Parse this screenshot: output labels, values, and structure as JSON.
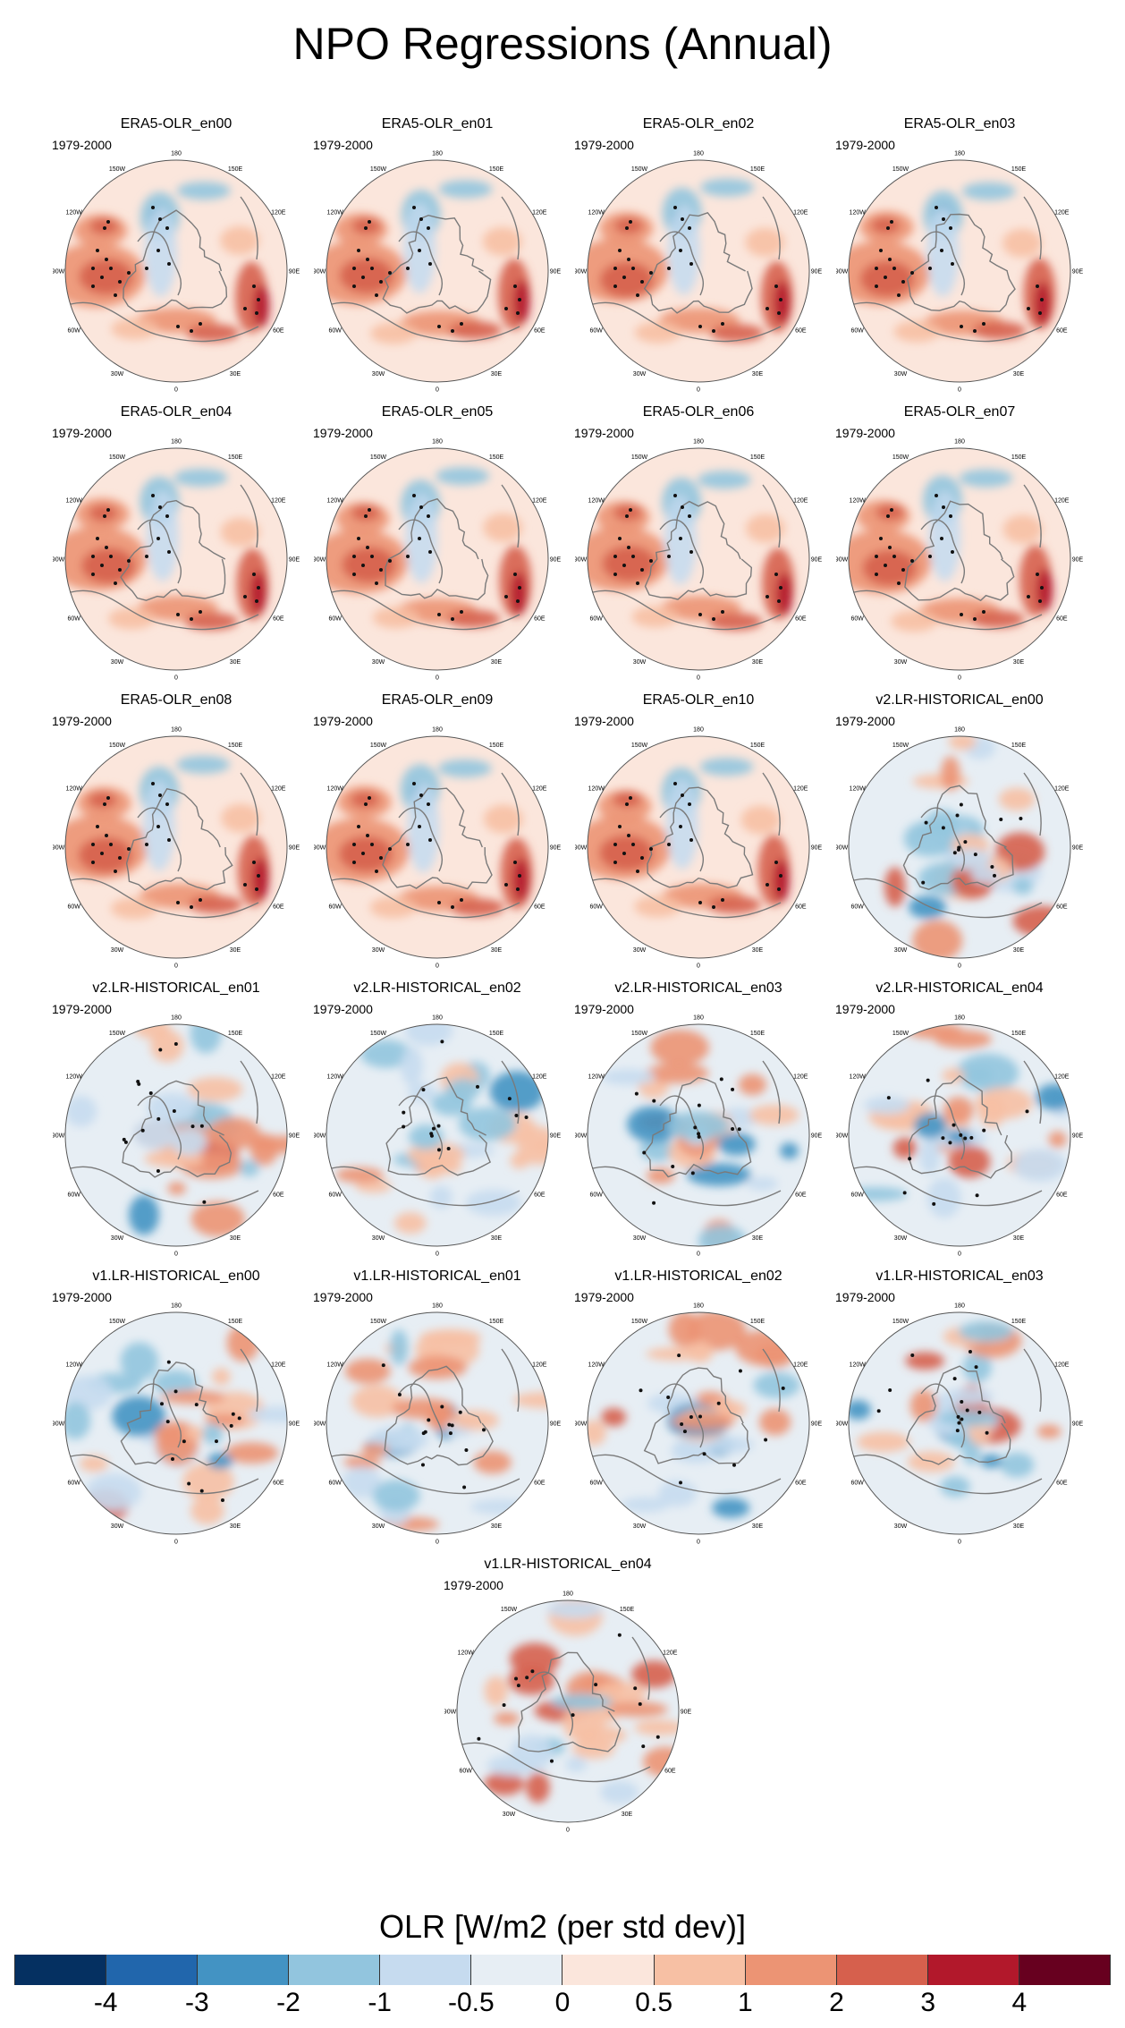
{
  "title": "NPO Regressions (Annual)",
  "colors": {
    "land_outline": "#7a7a7a",
    "stipple": "#111111",
    "circle": "#555555"
  },
  "panels": [
    {
      "title": "ERA5-OLR_en00",
      "period": "1979-2000",
      "type": "era5"
    },
    {
      "title": "ERA5-OLR_en01",
      "period": "1979-2000",
      "type": "era5"
    },
    {
      "title": "ERA5-OLR_en02",
      "period": "1979-2000",
      "type": "era5"
    },
    {
      "title": "ERA5-OLR_en03",
      "period": "1979-2000",
      "type": "era5"
    },
    {
      "title": "ERA5-OLR_en04",
      "period": "1979-2000",
      "type": "era5"
    },
    {
      "title": "ERA5-OLR_en05",
      "period": "1979-2000",
      "type": "era5"
    },
    {
      "title": "ERA5-OLR_en06",
      "period": "1979-2000",
      "type": "era5"
    },
    {
      "title": "ERA5-OLR_en07",
      "period": "1979-2000",
      "type": "era5"
    },
    {
      "title": "ERA5-OLR_en08",
      "period": "1979-2000",
      "type": "era5"
    },
    {
      "title": "ERA5-OLR_en09",
      "period": "1979-2000",
      "type": "era5"
    },
    {
      "title": "ERA5-OLR_en10",
      "period": "1979-2000",
      "type": "era5"
    },
    {
      "title": "v2.LR-HISTORICAL_en00",
      "period": "1979-2000",
      "type": "model"
    },
    {
      "title": "v2.LR-HISTORICAL_en01",
      "period": "1979-2000",
      "type": "model"
    },
    {
      "title": "v2.LR-HISTORICAL_en02",
      "period": "1979-2000",
      "type": "model"
    },
    {
      "title": "v2.LR-HISTORICAL_en03",
      "period": "1979-2000",
      "type": "model"
    },
    {
      "title": "v2.LR-HISTORICAL_en04",
      "period": "1979-2000",
      "type": "model"
    },
    {
      "title": "v1.LR-HISTORICAL_en00",
      "period": "1979-2000",
      "type": "model"
    },
    {
      "title": "v1.LR-HISTORICAL_en01",
      "period": "1979-2000",
      "type": "model"
    },
    {
      "title": "v1.LR-HISTORICAL_en02",
      "period": "1979-2000",
      "type": "model"
    },
    {
      "title": "v1.LR-HISTORICAL_en03",
      "period": "1979-2000",
      "type": "model"
    },
    {
      "title": "v1.LR-HISTORICAL_en04",
      "period": "1979-2000",
      "type": "model"
    }
  ],
  "longitude_labels": [
    "180",
    "150E",
    "120E",
    "90E",
    "60E",
    "30E",
    "0",
    "30W",
    "60W",
    "90W",
    "120W",
    "150W"
  ],
  "colorbar": {
    "title": "OLR [W/m2 (per std dev)]",
    "colors": [
      "#053061",
      "#2166ac",
      "#4393c3",
      "#92c5de",
      "#c6dbef",
      "#e7eef4",
      "#fbe6dc",
      "#f7c0a4",
      "#ec9474",
      "#d6604d",
      "#b2182b",
      "#67001f"
    ],
    "labels": [
      "-4",
      "-3",
      "-2",
      "-1",
      "-0.5",
      "0",
      "0.5",
      "1",
      "2",
      "3",
      "4"
    ]
  }
}
